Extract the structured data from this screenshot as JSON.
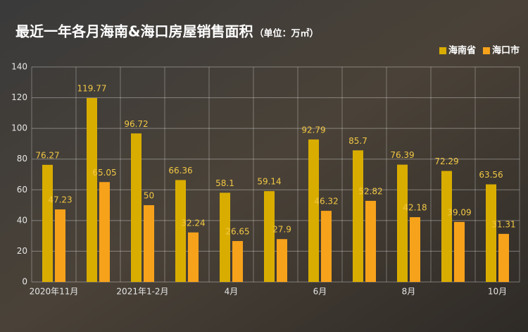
{
  "chart_data": {
    "type": "bar",
    "title": "最近一年各月海南&海口房屋销售面积",
    "subtitle": "（单位：万㎡）",
    "categories": [
      "2020年11月",
      null,
      "2021年1-2月",
      null,
      "4月",
      null,
      "6月",
      null,
      "8月",
      null,
      "10月"
    ],
    "series": [
      {
        "name": "海南省",
        "color": "#d9ad00",
        "values": [
          76.27,
          119.77,
          96.72,
          66.36,
          58.1,
          59.14,
          92.79,
          85.7,
          76.39,
          72.29,
          63.56
        ]
      },
      {
        "name": "海口市",
        "color": "#f7a21b",
        "values": [
          47.23,
          65.05,
          50,
          32.24,
          26.65,
          27.9,
          46.32,
          52.82,
          42.18,
          39.09,
          31.31
        ]
      }
    ],
    "ylim": [
      0,
      140
    ],
    "yticks": [
      0,
      20,
      40,
      60,
      80,
      100,
      120,
      140
    ],
    "grid": true,
    "legend": "top-right",
    "value_label_color": "#f2c744"
  }
}
